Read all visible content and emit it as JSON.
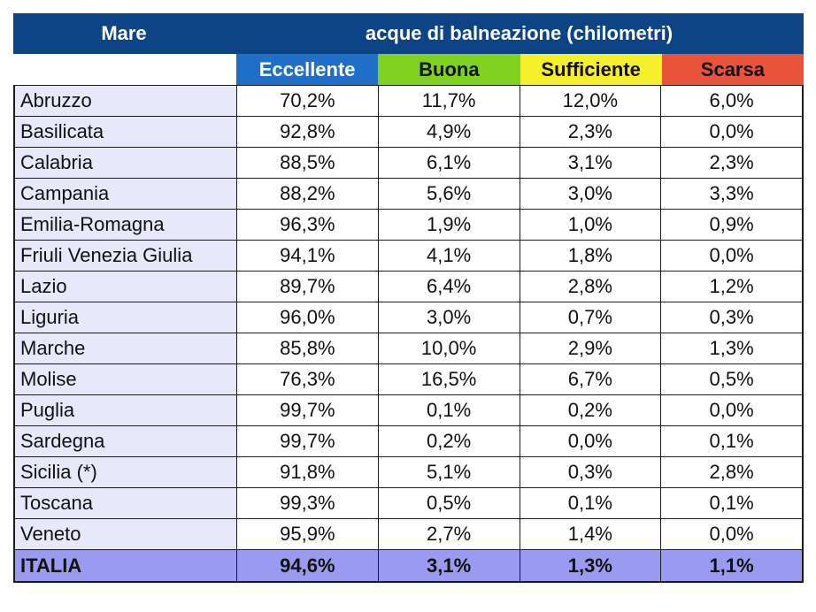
{
  "header": {
    "mare": "Mare",
    "acque": "acque di balneazione (chilometri)"
  },
  "categories": [
    {
      "label": "Eccellente",
      "bg": "#1f6fc9",
      "fg": "#ffffff"
    },
    {
      "label": "Buona",
      "bg": "#7fd21f",
      "fg": "#111111"
    },
    {
      "label": "Sufficiente",
      "bg": "#f5f02b",
      "fg": "#111111"
    },
    {
      "label": "Scarsa",
      "bg": "#e8533a",
      "fg": "#111111"
    }
  ],
  "rows": [
    {
      "region": "Abruzzo",
      "values": [
        "70,2%",
        "11,7%",
        "12,0%",
        "6,0%"
      ]
    },
    {
      "region": "Basilicata",
      "values": [
        "92,8%",
        "4,9%",
        "2,3%",
        "0,0%"
      ]
    },
    {
      "region": "Calabria",
      "values": [
        "88,5%",
        "6,1%",
        "3,1%",
        "2,3%"
      ]
    },
    {
      "region": "Campania",
      "values": [
        "88,2%",
        "5,6%",
        "3,0%",
        "3,3%"
      ]
    },
    {
      "region": "Emilia-Romagna",
      "values": [
        "96,3%",
        "1,9%",
        "1,0%",
        "0,9%"
      ]
    },
    {
      "region": "Friuli Venezia Giulia",
      "values": [
        "94,1%",
        "4,1%",
        "1,8%",
        "0,0%"
      ]
    },
    {
      "region": "Lazio",
      "values": [
        "89,7%",
        "6,4%",
        "2,8%",
        "1,2%"
      ]
    },
    {
      "region": "Liguria",
      "values": [
        "96,0%",
        "3,0%",
        "0,7%",
        "0,3%"
      ]
    },
    {
      "region": "Marche",
      "values": [
        "85,8%",
        "10,0%",
        "2,9%",
        "1,3%"
      ]
    },
    {
      "region": "Molise",
      "values": [
        "76,3%",
        "16,5%",
        "6,7%",
        "0,5%"
      ]
    },
    {
      "region": "Puglia",
      "values": [
        "99,7%",
        "0,1%",
        "0,2%",
        "0,0%"
      ]
    },
    {
      "region": "Sardegna",
      "values": [
        "99,7%",
        "0,2%",
        "0,0%",
        "0,1%"
      ]
    },
    {
      "region": "Sicilia (*)",
      "values": [
        "91,8%",
        "5,1%",
        "0,3%",
        "2,8%"
      ]
    },
    {
      "region": "Toscana",
      "values": [
        "99,3%",
        "0,5%",
        "0,1%",
        "0,1%"
      ]
    },
    {
      "region": "Veneto",
      "values": [
        "95,9%",
        "2,7%",
        "1,4%",
        "0,0%"
      ]
    }
  ],
  "total": {
    "region": "ITALIA",
    "values": [
      "94,6%",
      "3,1%",
      "1,3%",
      "1,1%"
    ]
  }
}
